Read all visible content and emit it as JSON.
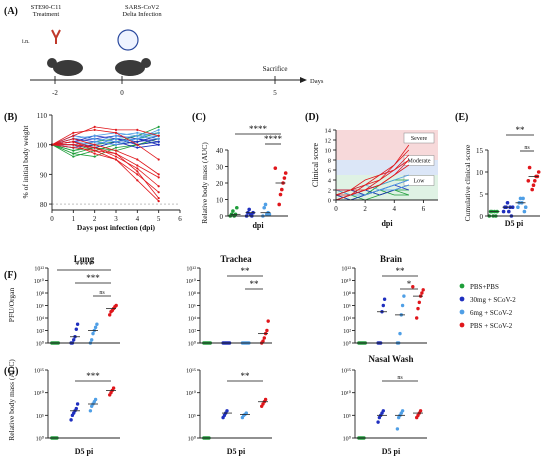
{
  "chart_data": [
    {
      "panel": "A",
      "type": "timeline",
      "labels": [
        "STE90-C11",
        "Treatment",
        "SARS-CoV2",
        "Delta Infection",
        "i.n.",
        "Sacrifice",
        "Days"
      ],
      "ticks": [
        -2,
        0,
        5
      ]
    },
    {
      "panel": "B",
      "type": "line",
      "ylabel": "% of initial body weight",
      "xlabel": "Days post infection (dpi)",
      "xlim": [
        0,
        6
      ],
      "ylim": [
        78,
        110
      ],
      "xticks": [
        "0",
        "1",
        "2",
        "3",
        "4",
        "5",
        "6"
      ],
      "yticks": [
        "80",
        "90",
        "100",
        "110"
      ],
      "series": [
        {
          "group": "green",
          "values": [
            100,
            97,
            99,
            101,
            103,
            106
          ]
        },
        {
          "group": "green",
          "values": [
            100,
            98,
            100,
            101,
            102,
            104
          ]
        },
        {
          "group": "green",
          "values": [
            100,
            96,
            98,
            100,
            101,
            103
          ]
        },
        {
          "group": "green",
          "values": [
            100,
            99,
            101,
            102,
            103,
            104
          ]
        },
        {
          "group": "green",
          "values": [
            100,
            97,
            96,
            99,
            100,
            101
          ]
        },
        {
          "group": "green",
          "values": [
            100,
            98,
            99,
            98,
            100,
            102
          ]
        },
        {
          "group": "darkblue",
          "values": [
            100,
            102,
            101,
            100,
            101,
            103
          ]
        },
        {
          "group": "darkblue",
          "values": [
            100,
            101,
            103,
            102,
            100,
            101
          ]
        },
        {
          "group": "darkblue",
          "values": [
            100,
            100,
            99,
            101,
            102,
            100
          ]
        },
        {
          "group": "darkblue",
          "values": [
            100,
            103,
            102,
            101,
            99,
            100
          ]
        },
        {
          "group": "darkblue",
          "values": [
            100,
            99,
            100,
            102,
            101,
            102
          ]
        },
        {
          "group": "darkblue",
          "values": [
            100,
            101,
            102,
            103,
            102,
            101
          ]
        },
        {
          "group": "lightblue",
          "values": [
            100,
            102,
            103,
            104,
            103,
            102
          ]
        },
        {
          "group": "lightblue",
          "values": [
            100,
            100,
            101,
            103,
            104,
            103
          ]
        },
        {
          "group": "lightblue",
          "values": [
            100,
            101,
            100,
            102,
            103,
            104
          ]
        },
        {
          "group": "lightblue",
          "values": [
            100,
            103,
            102,
            101,
            102,
            105
          ]
        },
        {
          "group": "lightblue",
          "values": [
            100,
            99,
            101,
            100,
            102,
            103
          ]
        },
        {
          "group": "red",
          "values": [
            100,
            101,
            98,
            97,
            93,
            89
          ]
        },
        {
          "group": "red",
          "values": [
            100,
            100,
            99,
            96,
            92,
            86
          ]
        },
        {
          "group": "red",
          "values": [
            100,
            102,
            100,
            98,
            95,
            90
          ]
        },
        {
          "group": "red",
          "values": [
            100,
            99,
            98,
            95,
            90,
            84
          ]
        },
        {
          "group": "red",
          "values": [
            100,
            101,
            99,
            97,
            91,
            82
          ]
        },
        {
          "group": "red",
          "values": [
            100,
            100,
            97,
            95,
            88,
            81
          ]
        },
        {
          "group": "red",
          "values": [
            100,
            103,
            106,
            105,
            105,
            103
          ]
        },
        {
          "group": "red",
          "values": [
            100,
            104,
            105,
            104,
            100,
            95
          ]
        }
      ]
    },
    {
      "panel": "C",
      "type": "scatter",
      "xlabel": "dpi",
      "ylabel": "Relative body mass (AUC)",
      "ylim": [
        0,
        40
      ],
      "yticks": [
        "0",
        "10",
        "20",
        "30",
        "40"
      ],
      "groups": [
        {
          "group": "green",
          "values": [
            0,
            1,
            3,
            0,
            1,
            5
          ]
        },
        {
          "group": "darkblue",
          "values": [
            0,
            2,
            4,
            1,
            0,
            2
          ]
        },
        {
          "group": "lightblue",
          "values": [
            0,
            5,
            7,
            1,
            2,
            1
          ]
        },
        {
          "group": "red",
          "values": [
            7,
            13,
            16,
            20,
            23,
            26,
            29
          ]
        }
      ],
      "stats": [
        "****",
        "****"
      ]
    },
    {
      "panel": "D",
      "type": "line",
      "xlabel": "dpi",
      "ylabel": "Clinical score",
      "xlim": [
        0,
        7
      ],
      "ylim": [
        0,
        14
      ],
      "xticks": [
        "0",
        "2",
        "4",
        "6"
      ],
      "yticks": [
        "0",
        "2",
        "4",
        "6",
        "8",
        "10",
        "12",
        "14"
      ],
      "bands": [
        "Severe",
        "Moderate",
        "Low"
      ],
      "series": [
        {
          "group": "green",
          "values": [
            1,
            0,
            1,
            2,
            1,
            1
          ]
        },
        {
          "group": "green",
          "values": [
            0,
            1,
            0,
            1,
            2,
            2
          ]
        },
        {
          "group": "green",
          "values": [
            2,
            1,
            2,
            1,
            2,
            1
          ]
        },
        {
          "group": "green",
          "values": [
            1,
            2,
            1,
            3,
            4,
            4
          ]
        },
        {
          "group": "darkblue",
          "values": [
            0,
            1,
            2,
            1,
            2,
            3
          ]
        },
        {
          "group": "darkblue",
          "values": [
            2,
            2,
            1,
            2,
            3,
            2
          ]
        },
        {
          "group": "darkblue",
          "values": [
            1,
            0,
            1,
            2,
            3,
            4
          ]
        },
        {
          "group": "lightblue",
          "values": [
            1,
            2,
            3,
            2,
            3,
            4
          ]
        },
        {
          "group": "lightblue",
          "values": [
            2,
            1,
            2,
            3,
            4,
            5
          ]
        },
        {
          "group": "lightblue",
          "values": [
            0,
            1,
            1,
            2,
            2,
            3
          ]
        },
        {
          "group": "red",
          "values": [
            0,
            1,
            2,
            3,
            5,
            8
          ]
        },
        {
          "group": "red",
          "values": [
            1,
            1,
            2,
            4,
            6,
            9
          ]
        },
        {
          "group": "red",
          "values": [
            2,
            2,
            3,
            4,
            7,
            10
          ]
        },
        {
          "group": "red",
          "values": [
            1,
            2,
            2,
            3,
            5,
            7
          ]
        },
        {
          "group": "red",
          "values": [
            0,
            1,
            3,
            5,
            7,
            11
          ]
        },
        {
          "group": "red",
          "values": [
            1,
            2,
            4,
            5,
            6,
            8
          ]
        }
      ]
    },
    {
      "panel": "E",
      "type": "scatter",
      "xlabel": "D5 pi",
      "ylabel": "Cumulative clinical score",
      "ylim": [
        0,
        15
      ],
      "yticks": [
        "0",
        "5",
        "10",
        "15"
      ],
      "groups": [
        {
          "group": "green",
          "values": [
            0,
            1,
            1,
            0,
            1,
            0,
            1
          ]
        },
        {
          "group": "darkblue",
          "values": [
            1,
            2,
            2,
            3,
            1,
            2,
            0,
            2
          ]
        },
        {
          "group": "lightblue",
          "values": [
            2,
            3,
            4,
            3,
            4,
            1,
            2
          ]
        },
        {
          "group": "red",
          "values": [
            6,
            7,
            8,
            9,
            9,
            10,
            8,
            11
          ]
        }
      ],
      "stats": [
        "**",
        "ns"
      ]
    },
    {
      "panel": "F",
      "type": "scatter-log",
      "ylabel": "PFU/Organ",
      "yticks": [
        "10⁰",
        "10²",
        "10⁴",
        "10⁶",
        "10⁸",
        "10¹⁰",
        "10¹²"
      ],
      "subplots": [
        {
          "title": "Lung",
          "stats": [
            "****",
            "***",
            "ns"
          ],
          "groups": [
            {
              "group": "green",
              "values": [
                0,
                0,
                0,
                0,
                0,
                0
              ]
            },
            {
              "group": "darkblue",
              "values": [
                0,
                0,
                0.5,
                1,
                2.2,
                3
              ]
            },
            {
              "group": "lightblue",
              "values": [
                0,
                0.5,
                1.5,
                2,
                2.5,
                3
              ]
            },
            {
              "group": "red",
              "values": [
                4.5,
                5,
                5.2,
                5.5,
                5.8,
                6
              ]
            }
          ]
        },
        {
          "title": "Trachea",
          "stats": [
            "**",
            "**"
          ],
          "groups": [
            {
              "group": "green",
              "values": [
                0,
                0,
                0,
                0,
                0,
                0
              ]
            },
            {
              "group": "darkblue",
              "values": [
                0,
                0,
                0,
                0,
                0,
                0
              ]
            },
            {
              "group": "lightblue",
              "values": [
                0,
                0,
                0,
                0,
                0,
                0
              ]
            },
            {
              "group": "red",
              "values": [
                0,
                0.3,
                0.8,
                1.5,
                2,
                3.5
              ]
            }
          ]
        },
        {
          "title": "Brain",
          "stats": [
            "**",
            "*"
          ],
          "groups": [
            {
              "group": "green",
              "values": [
                0,
                0,
                0,
                0,
                0,
                0
              ]
            },
            {
              "group": "darkblue",
              "values": [
                0,
                0,
                0,
                5,
                6,
                7
              ]
            },
            {
              "group": "lightblue",
              "values": [
                0,
                0,
                1.5,
                4.5,
                6,
                7.5
              ]
            },
            {
              "group": "red",
              "values": [
                4,
                5.5,
                6.5,
                7.5,
                8,
                8.5,
                9
              ]
            }
          ]
        }
      ]
    },
    {
      "panel": "G",
      "type": "scatter-log",
      "ylabel": "Relative body mass (AUC)",
      "xlabel": "D5 pi",
      "yticks": [
        "10⁰",
        "10⁵",
        "10¹⁰",
        "10¹⁵"
      ],
      "subplots": [
        {
          "title": "",
          "stats": [
            "***"
          ],
          "groups": [
            {
              "group": "green",
              "values": [
                0,
                0,
                0,
                0,
                0
              ]
            },
            {
              "group": "darkblue",
              "values": [
                4,
                5,
                5.5,
                6,
                6.5,
                7.5
              ]
            },
            {
              "group": "lightblue",
              "values": [
                6,
                7,
                7.5,
                8,
                8.5
              ]
            },
            {
              "group": "red",
              "values": [
                9.5,
                10,
                10.5,
                11
              ]
            }
          ]
        },
        {
          "title": "",
          "stats": [
            "**"
          ],
          "groups": [
            {
              "group": "green",
              "values": [
                0,
                0,
                0,
                0,
                0
              ]
            },
            {
              "group": "darkblue",
              "values": [
                4.5,
                5,
                5.5,
                6
              ]
            },
            {
              "group": "lightblue",
              "values": [
                4.5,
                5,
                5.2,
                5.5
              ]
            },
            {
              "group": "red",
              "values": [
                7,
                7.5,
                8,
                8.5
              ]
            }
          ]
        },
        {
          "title": "Nasal Wash",
          "stats": [
            "ns"
          ],
          "groups": [
            {
              "group": "green",
              "values": [
                0,
                0,
                0,
                0,
                0
              ]
            },
            {
              "group": "darkblue",
              "values": [
                3.5,
                4.5,
                5,
                5.5,
                6
              ]
            },
            {
              "group": "lightblue",
              "values": [
                2,
                4.5,
                5,
                5.5,
                6
              ]
            },
            {
              "group": "red",
              "values": [
                4.5,
                5,
                5.5,
                6
              ]
            }
          ]
        }
      ]
    }
  ],
  "legend": [
    {
      "label": "PBS+PBS",
      "color": "#1e9e3a"
    },
    {
      "label": "30mg + SCoV-2",
      "color": "#1f2fbf"
    },
    {
      "label": "6mg + SCoV-2",
      "color": "#4f9fe6"
    },
    {
      "label": "PBS + SCoV-2",
      "color": "#e0161b"
    }
  ],
  "group_colors": {
    "green": "#1e9e3a",
    "darkblue": "#1f2fbf",
    "lightblue": "#4f9fe6",
    "red": "#e0161b"
  }
}
